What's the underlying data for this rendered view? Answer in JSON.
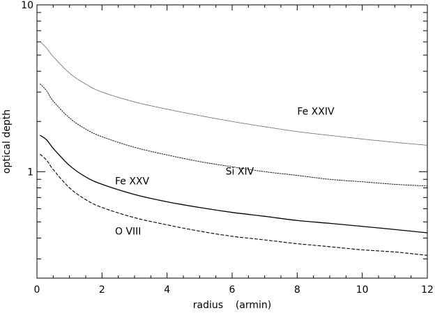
{
  "chart_data": {
    "type": "line",
    "xlabel": "radius    (armin)",
    "ylabel": "optical depth",
    "xlim": [
      0,
      12
    ],
    "ylim": [
      0.23,
      10
    ],
    "yscale": "log",
    "grid": false,
    "x_ticks": [
      0,
      2,
      4,
      6,
      8,
      10,
      12
    ],
    "y_tick_labels": [
      "1",
      "10"
    ],
    "series": [
      {
        "name": "Fe XXIV",
        "line_style": "dotted-thin",
        "x": [
          0.1,
          0.3,
          0.5,
          1.0,
          1.5,
          2.0,
          3.0,
          4.0,
          5.0,
          6.0,
          7.0,
          8.0,
          9.0,
          10.0,
          11.0,
          12.0
        ],
        "y": [
          6.0,
          5.5,
          4.9,
          3.9,
          3.35,
          3.0,
          2.62,
          2.37,
          2.17,
          2.0,
          1.86,
          1.74,
          1.65,
          1.57,
          1.5,
          1.44
        ]
      },
      {
        "name": "Si XIV",
        "line_style": "dotted",
        "x": [
          0.1,
          0.3,
          0.5,
          1.0,
          1.5,
          2.0,
          3.0,
          4.0,
          5.0,
          6.0,
          7.0,
          8.0,
          9.0,
          10.0,
          11.0,
          12.0
        ],
        "y": [
          3.35,
          3.05,
          2.65,
          2.1,
          1.8,
          1.62,
          1.4,
          1.26,
          1.15,
          1.07,
          1.0,
          0.95,
          0.9,
          0.87,
          0.84,
          0.82
        ]
      },
      {
        "name": "Fe XXV",
        "line_style": "solid",
        "x": [
          0.1,
          0.3,
          0.5,
          1.0,
          1.5,
          2.0,
          3.0,
          4.0,
          5.0,
          6.0,
          7.0,
          8.0,
          9.0,
          10.0,
          11.0,
          12.0
        ],
        "y": [
          1.65,
          1.55,
          1.38,
          1.09,
          0.93,
          0.84,
          0.73,
          0.66,
          0.61,
          0.57,
          0.54,
          0.51,
          0.49,
          0.47,
          0.45,
          0.43
        ]
      },
      {
        "name": "O VIII",
        "line_style": "dashed",
        "x": [
          0.1,
          0.3,
          0.5,
          1.0,
          1.5,
          2.0,
          3.0,
          4.0,
          5.0,
          6.0,
          7.0,
          8.0,
          9.0,
          10.0,
          11.0,
          12.0
        ],
        "y": [
          1.27,
          1.17,
          1.03,
          0.8,
          0.68,
          0.61,
          0.53,
          0.48,
          0.44,
          0.41,
          0.39,
          0.37,
          0.355,
          0.34,
          0.33,
          0.315
        ]
      }
    ],
    "annotations": [
      {
        "text": "Fe XXIV",
        "x": 8.0,
        "y": 2.2
      },
      {
        "text": "Si XIV",
        "x": 5.8,
        "y": 0.96
      },
      {
        "text": "Fe XXV",
        "x": 2.4,
        "y": 0.84
      },
      {
        "text": "O VIII",
        "x": 2.4,
        "y": 0.42
      }
    ]
  }
}
